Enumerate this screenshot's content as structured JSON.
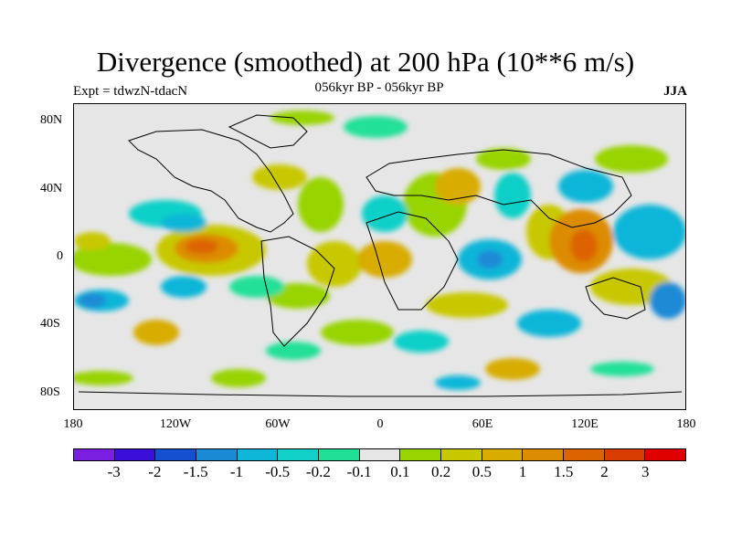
{
  "title": "Divergence (smoothed) at 200 hPa (10**6 m/s)",
  "experiment": "Expt = tdwzN-tdacN",
  "period": "056kyr BP - 056kyr BP",
  "season": "JJA",
  "lat_ticks": [
    "80N",
    "40N",
    "0",
    "40S",
    "80S"
  ],
  "lon_ticks": [
    "180",
    "120W",
    "60W",
    "0",
    "60E",
    "120E",
    "180"
  ],
  "colorbar": {
    "colors": [
      "#7a1fe0",
      "#3a10d8",
      "#1450d0",
      "#1a8ad6",
      "#10b6d8",
      "#10d0c8",
      "#20e098",
      "#e6e6e6",
      "#98d400",
      "#c8c800",
      "#d8ac00",
      "#dc8c00",
      "#dc6400",
      "#d83c00",
      "#e00000"
    ],
    "labels": [
      "-3",
      "-2",
      "-1.5",
      "-1",
      "-0.5",
      "-0.2",
      "-0.1",
      "0.1",
      "0.2",
      "0.5",
      "1",
      "1.5",
      "2",
      "3"
    ]
  }
}
